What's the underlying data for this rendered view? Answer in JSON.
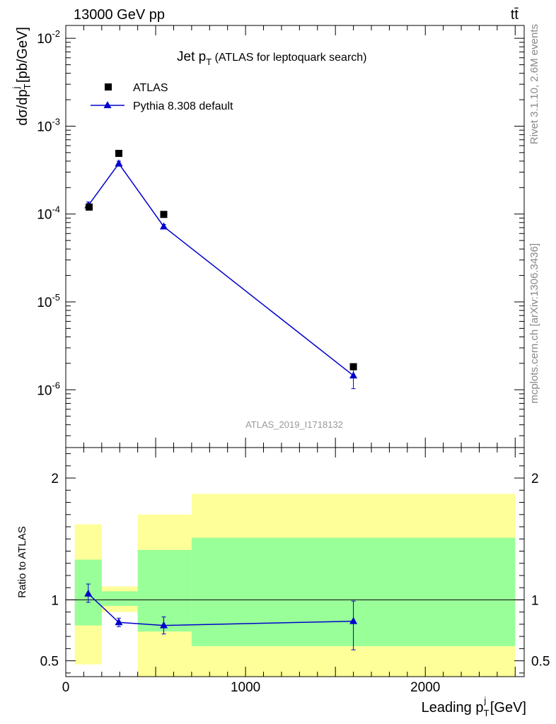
{
  "header": {
    "left": "13000 GeV pp",
    "right": "tt̄"
  },
  "side_labels": {
    "rivet": "Rivet 3.1.10,  2.6M events",
    "mcplots": "mcplots.cern.ch [arXiv:1306.3436]"
  },
  "analysis_id": "ATLAS_2019_I1718132",
  "colors": {
    "mc": "#0000cc",
    "band_inner": "#99ff99",
    "band_outer": "#ffff99",
    "data": "#000000",
    "side_text": "#888888"
  },
  "chart_data": [
    {
      "type": "scatter",
      "panel": "main",
      "title": "Jet p_T (ATLAS for leptoquark search)",
      "title_main": "Jet p",
      "title_sub": "T",
      "title_rest": " (ATLAS for leptoquark search)",
      "ylabel": "dσ/dp_T^j [pb/GeV]",
      "ylabel_parts": {
        "a": "dσ/dp",
        "sub": "T",
        "sup": "j",
        "b": " [pb/GeV]"
      },
      "yscale": "log",
      "ylim": [
        2.2e-07,
        0.014
      ],
      "xlim": [
        0,
        2550
      ],
      "y_tick_labels": [
        {
          "value": 0.01,
          "label": "10",
          "exp": "-2"
        },
        {
          "value": 0.001,
          "label": "10",
          "exp": "-3"
        },
        {
          "value": 0.0001,
          "label": "10",
          "exp": "-4"
        },
        {
          "value": 1e-05,
          "label": "10",
          "exp": "-5"
        },
        {
          "value": 1e-06,
          "label": "10",
          "exp": "-6"
        }
      ],
      "legend_position": "top-left",
      "series": [
        {
          "name": "ATLAS",
          "marker": "square",
          "x": [
            130,
            295,
            545,
            1600
          ],
          "y": [
            0.00012,
            0.00049,
            9.9e-05,
            1.83e-06
          ]
        },
        {
          "name": "Pythia 8.308 default",
          "marker": "triangle",
          "line": true,
          "x": [
            125,
            295,
            545,
            1600
          ],
          "y": [
            0.000125,
            0.000375,
            7.2e-05,
            1.45e-06
          ],
          "err_low": [
            0.000115,
            0.00035,
            6.8e-05,
            1.03e-06
          ],
          "err_high": [
            0.000137,
            0.0004,
            7.6e-05,
            1.8e-06
          ]
        }
      ]
    },
    {
      "type": "scatter",
      "panel": "ratio",
      "ylabel": "Ratio to ATLAS",
      "xlabel": "Leading p_T^j [GeV]",
      "xlabel_parts": {
        "a": "Leading p",
        "sub": "T",
        "sup": "j",
        "b": " [GeV]"
      },
      "ylim": [
        0.37,
        2.25
      ],
      "xlim": [
        0,
        2550
      ],
      "y_tick_labels": [
        {
          "value": 0.5,
          "label": "0.5"
        },
        {
          "value": 1,
          "label": "1"
        },
        {
          "value": 2,
          "label": "2"
        }
      ],
      "x_tick_labels": [
        {
          "value": 0,
          "label": "0"
        },
        {
          "value": 1000,
          "label": "1000"
        },
        {
          "value": 2000,
          "label": "2000"
        }
      ],
      "bands": [
        {
          "x0": 50,
          "x1": 200,
          "outer": [
            0.47,
            1.62
          ],
          "inner": [
            0.79,
            1.33
          ]
        },
        {
          "x0": 200,
          "x1": 400,
          "outer": [
            0.9,
            1.11
          ],
          "inner": [
            0.95,
            1.07
          ]
        },
        {
          "x0": 400,
          "x1": 700,
          "outer": [
            0.37,
            1.7
          ],
          "inner": [
            0.74,
            1.41
          ]
        },
        {
          "x0": 700,
          "x1": 2500,
          "outer": [
            0.37,
            1.87
          ],
          "inner": [
            0.62,
            1.51
          ]
        }
      ],
      "series": [
        {
          "name": "Pythia 8.308 default",
          "x": [
            125,
            295,
            545,
            1600
          ],
          "y": [
            1.05,
            0.815,
            0.79,
            0.825
          ],
          "err_low": [
            0.98,
            0.78,
            0.72,
            0.59
          ],
          "err_high": [
            1.13,
            0.85,
            0.86,
            0.99
          ]
        }
      ]
    }
  ]
}
